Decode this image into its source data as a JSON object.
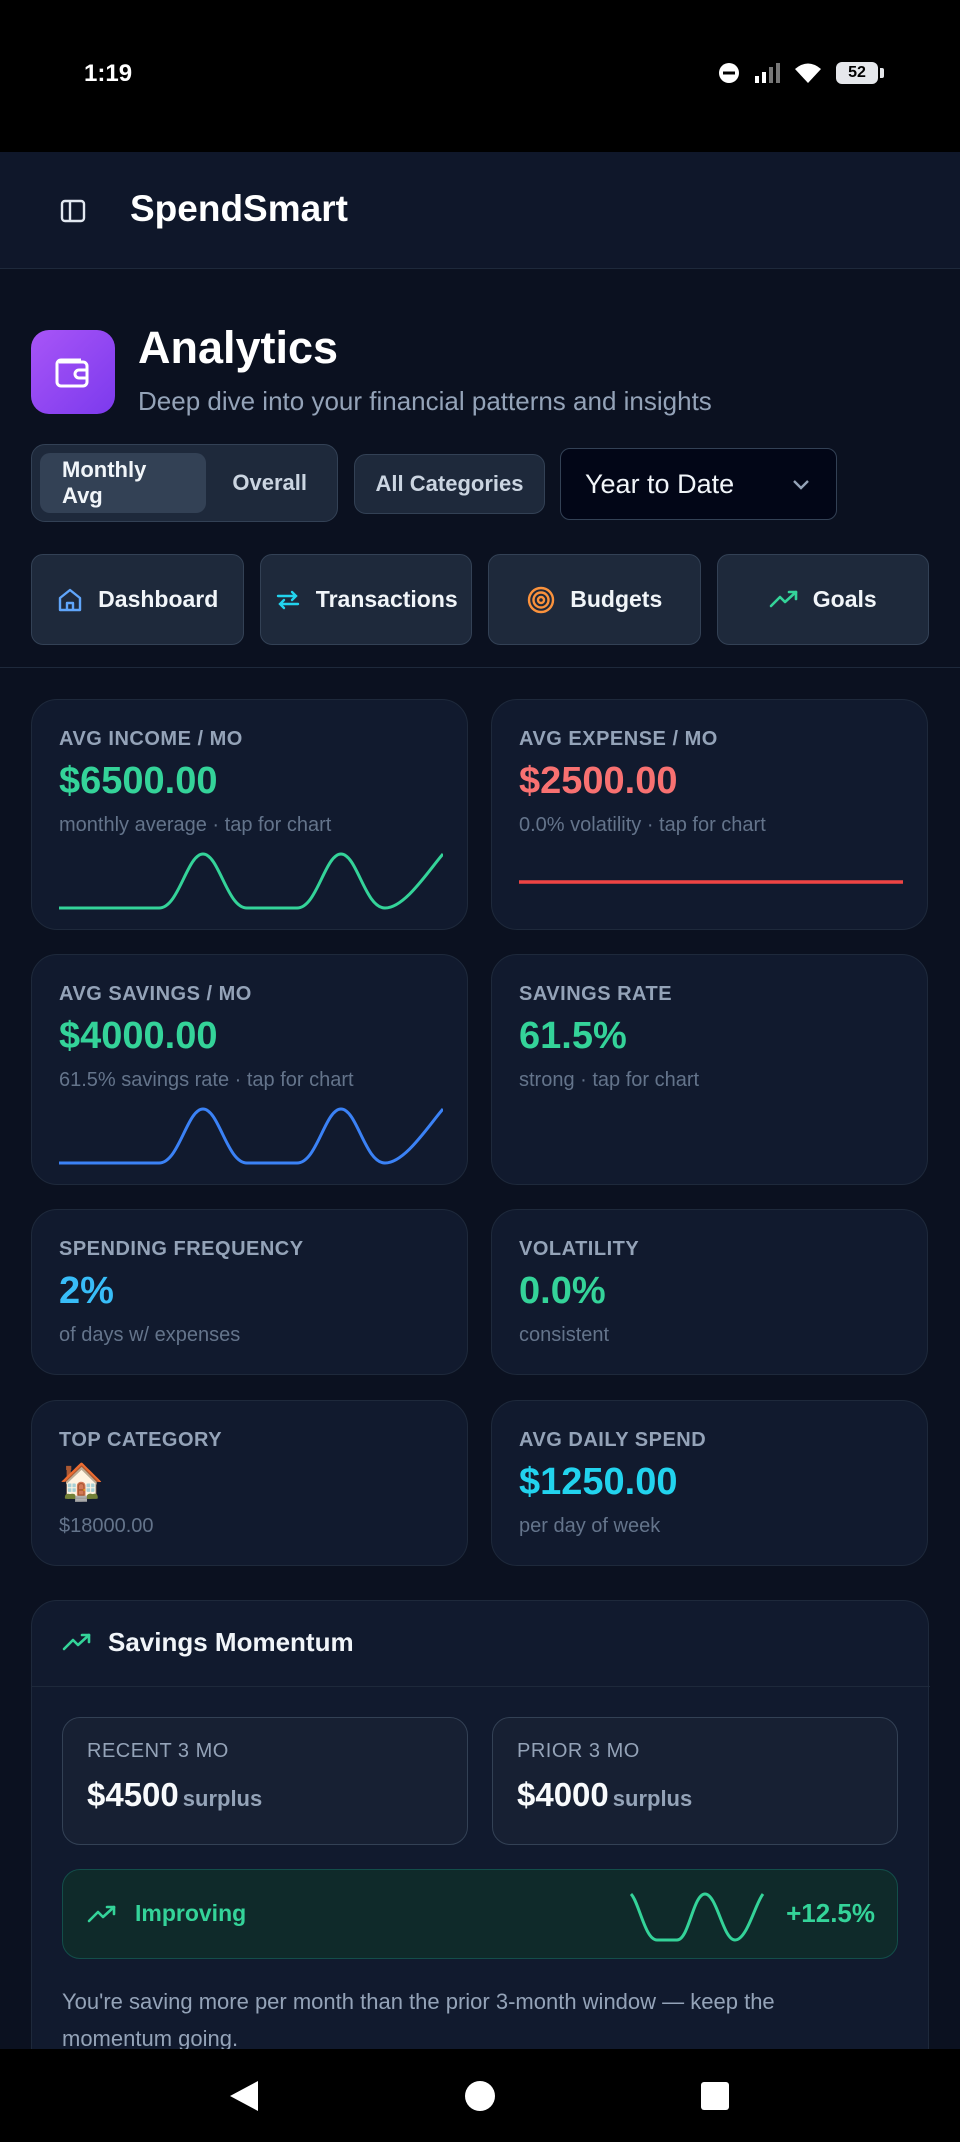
{
  "status": {
    "time": "1:19",
    "battery": "52"
  },
  "app": {
    "title": "SpendSmart"
  },
  "page": {
    "title": "Analytics",
    "subtitle": "Deep dive into your financial patterns and insights"
  },
  "filters": {
    "modes": [
      "Monthly Avg",
      "Overall"
    ],
    "active_mode": "Monthly Avg",
    "category": "All Categories",
    "range": "Year to Date"
  },
  "nav": [
    {
      "label": "Dashboard",
      "icon": "home-icon"
    },
    {
      "label": "Transactions",
      "icon": "arrows-swap-icon"
    },
    {
      "label": "Budgets",
      "icon": "target-icon"
    },
    {
      "label": "Goals",
      "icon": "trending-up-icon"
    }
  ],
  "cards": {
    "avg_income": {
      "label": "AVG INCOME / MO",
      "value": "$6500.00",
      "sub": "monthly average · tap for chart",
      "color": "#34d399"
    },
    "avg_expense": {
      "label": "AVG EXPENSE / MO",
      "value": "$2500.00",
      "sub": "0.0% volatility · tap for chart",
      "color": "#f87171"
    },
    "avg_savings": {
      "label": "AVG SAVINGS / MO",
      "value": "$4000.00",
      "sub": "61.5% savings rate · tap for chart",
      "color": "#34d399"
    },
    "savings_rate": {
      "label": "SAVINGS RATE",
      "value": "61.5%",
      "sub": "strong · tap for chart",
      "color": "#34d399"
    },
    "spending_freq": {
      "label": "SPENDING FREQUENCY",
      "value": "2%",
      "sub": "of days w/ expenses",
      "color": "#38bdf8"
    },
    "volatility": {
      "label": "VOLATILITY",
      "value": "0.0%",
      "sub": "consistent",
      "color": "#34d399"
    },
    "top_category": {
      "label": "TOP CATEGORY",
      "emoji": "🏠",
      "sub": "$18000.00"
    },
    "avg_daily": {
      "label": "AVG DAILY SPEND",
      "value": "$1250.00",
      "sub": "per day of week",
      "color": "#22d3ee"
    }
  },
  "momentum": {
    "title": "Savings Momentum",
    "recent": {
      "label": "RECENT 3 MO",
      "value": "$4500",
      "unit": "surplus"
    },
    "prior": {
      "label": "PRIOR 3 MO",
      "value": "$4000",
      "unit": "surplus"
    },
    "trend_label": "Improving",
    "trend_pct": "+12.5%",
    "note": "You're saving more per month than the prior 3-month window — keep the momentum going."
  },
  "colors": {
    "accent_green": "#34d399",
    "accent_red": "#ef4444",
    "accent_blue": "#3b82f6",
    "bg": "#0b1120"
  }
}
